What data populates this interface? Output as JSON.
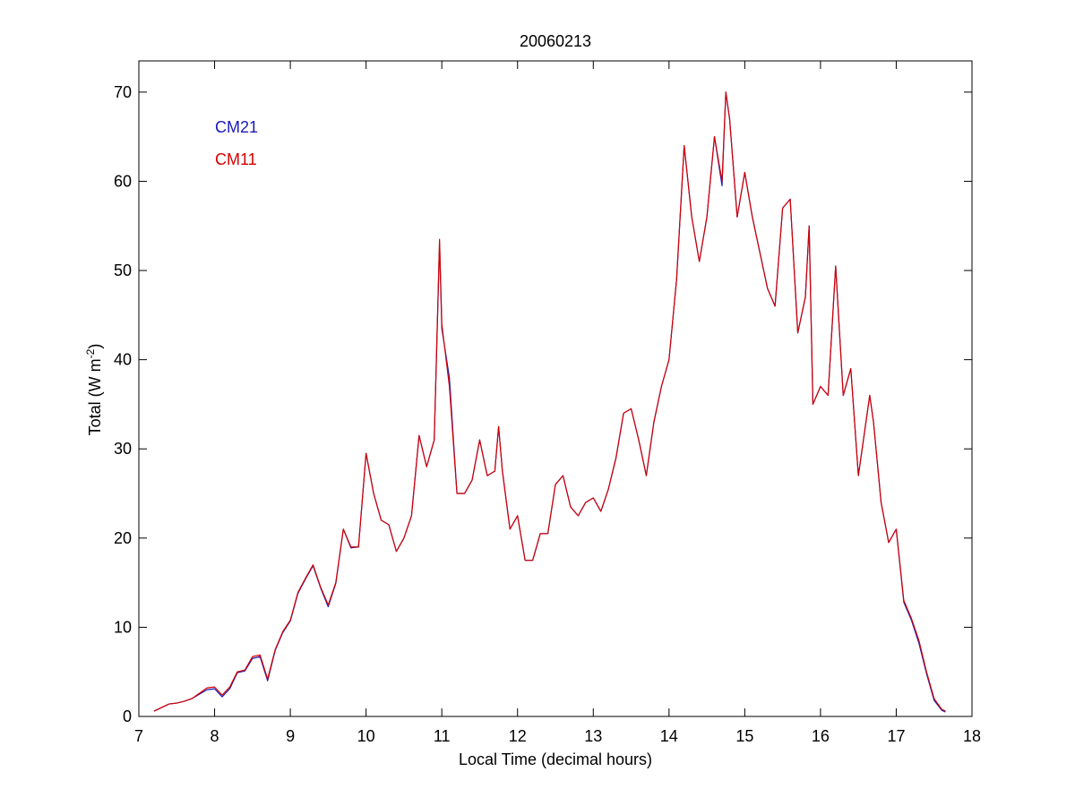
{
  "chart_data": {
    "type": "line",
    "title": "20060213",
    "xlabel": "Local Time (decimal hours)",
    "ylabel": {
      "text": "Total (W m",
      "superscript": "-2",
      "suffix": ")"
    },
    "xlim": [
      7,
      18
    ],
    "ylim": [
      0,
      73.5
    ],
    "xticks": [
      7,
      8,
      9,
      10,
      11,
      12,
      13,
      14,
      15,
      16,
      17,
      18
    ],
    "yticks": [
      0,
      10,
      20,
      30,
      40,
      50,
      60,
      70
    ],
    "grid": false,
    "legend": "upper left",
    "x": [
      7.2,
      7.3,
      7.4,
      7.5,
      7.6,
      7.7,
      7.8,
      7.9,
      8.0,
      8.1,
      8.2,
      8.3,
      8.4,
      8.5,
      8.6,
      8.7,
      8.8,
      8.9,
      9.0,
      9.1,
      9.2,
      9.3,
      9.4,
      9.5,
      9.6,
      9.7,
      9.8,
      9.9,
      10.0,
      10.1,
      10.2,
      10.3,
      10.4,
      10.5,
      10.6,
      10.7,
      10.8,
      10.9,
      10.97,
      11.0,
      11.1,
      11.2,
      11.3,
      11.4,
      11.5,
      11.6,
      11.7,
      11.75,
      11.8,
      11.9,
      12.0,
      12.1,
      12.2,
      12.3,
      12.4,
      12.5,
      12.6,
      12.7,
      12.8,
      12.9,
      13.0,
      13.1,
      13.2,
      13.3,
      13.4,
      13.5,
      13.6,
      13.7,
      13.8,
      13.9,
      14.0,
      14.1,
      14.2,
      14.3,
      14.4,
      14.5,
      14.6,
      14.7,
      14.75,
      14.8,
      14.9,
      15.0,
      15.1,
      15.2,
      15.3,
      15.4,
      15.5,
      15.6,
      15.7,
      15.8,
      15.85,
      15.9,
      16.0,
      16.1,
      16.2,
      16.3,
      16.4,
      16.5,
      16.6,
      16.65,
      16.7,
      16.8,
      16.9,
      17.0,
      17.1,
      17.2,
      17.3,
      17.4,
      17.5,
      17.6,
      17.65
    ],
    "series": [
      {
        "name": "CM21",
        "color": "#1a1ab8",
        "values": [
          0.6,
          1.0,
          1.4,
          1.5,
          1.7,
          2.0,
          2.5,
          3.0,
          3.1,
          2.2,
          3.1,
          4.9,
          5.1,
          6.5,
          6.7,
          4.0,
          7.4,
          9.4,
          10.7,
          13.8,
          15.4,
          16.9,
          14.4,
          12.3,
          14.9,
          21.0,
          18.9,
          19.0,
          29.5,
          25.0,
          22.0,
          21.5,
          18.5,
          20.0,
          22.5,
          31.5,
          28.0,
          31.0,
          53.0,
          43.5,
          38.0,
          25.0,
          25.0,
          26.5,
          31.0,
          27.0,
          27.5,
          32.5,
          27.5,
          21.0,
          22.5,
          17.5,
          17.5,
          20.5,
          20.5,
          26.0,
          27.0,
          23.5,
          22.5,
          24.0,
          24.5,
          23.0,
          25.5,
          29.0,
          34.0,
          34.5,
          31.0,
          27.0,
          33.0,
          37.0,
          40.0,
          49.0,
          64.0,
          56.0,
          51.0,
          56.0,
          65.0,
          59.5,
          70.0,
          67.0,
          56.0,
          61.0,
          56.0,
          52.0,
          48.0,
          46.0,
          57.0,
          58.0,
          43.0,
          47.0,
          55.0,
          35.0,
          37.0,
          36.0,
          50.5,
          36.0,
          39.0,
          27.0,
          33.0,
          36.0,
          33.0,
          24.0,
          19.5,
          21.0,
          12.8,
          10.8,
          8.2,
          4.8,
          1.8,
          0.7,
          0.5
        ]
      },
      {
        "name": "CM11",
        "color": "#d40000",
        "values": [
          0.6,
          1.0,
          1.4,
          1.5,
          1.7,
          2.0,
          2.6,
          3.2,
          3.3,
          2.4,
          3.3,
          5.0,
          5.2,
          6.7,
          6.9,
          4.2,
          7.5,
          9.5,
          10.8,
          13.9,
          15.5,
          17.0,
          14.5,
          12.5,
          15.0,
          21.0,
          19.0,
          19.0,
          29.5,
          25.0,
          22.0,
          21.5,
          18.5,
          20.0,
          22.5,
          31.5,
          28.0,
          31.0,
          53.5,
          44.0,
          37.0,
          25.0,
          25.0,
          26.5,
          31.0,
          27.0,
          27.5,
          32.5,
          27.5,
          21.0,
          22.5,
          17.5,
          17.5,
          20.5,
          20.5,
          26.0,
          27.0,
          23.5,
          22.5,
          24.0,
          24.5,
          23.0,
          25.5,
          29.0,
          34.0,
          34.5,
          31.0,
          27.0,
          33.0,
          37.0,
          40.0,
          49.0,
          64.0,
          56.0,
          51.0,
          56.0,
          65.0,
          60.0,
          70.0,
          67.0,
          56.0,
          61.0,
          56.0,
          52.0,
          48.0,
          46.0,
          57.0,
          58.0,
          43.0,
          47.0,
          55.0,
          35.0,
          37.0,
          36.0,
          50.5,
          36.0,
          39.0,
          27.0,
          33.0,
          36.0,
          33.0,
          24.0,
          19.5,
          21.0,
          13.0,
          11.0,
          8.5,
          5.0,
          2.0,
          0.8,
          0.6
        ]
      }
    ]
  }
}
